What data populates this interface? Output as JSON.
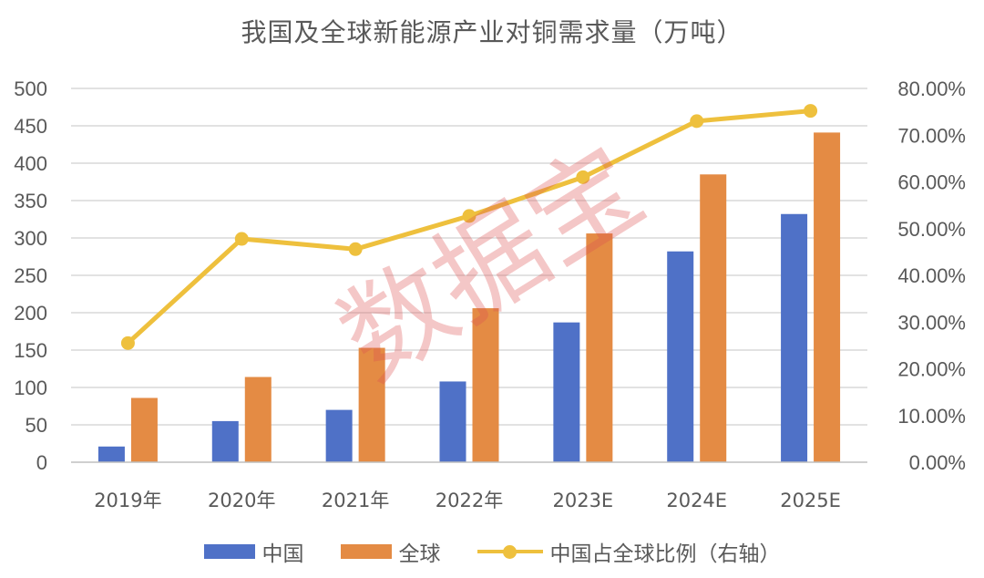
{
  "chart_data": {
    "type": "bar",
    "title": "我国及全球新能源产业对铜需求量（万吨）",
    "categories": [
      "2019年",
      "2020年",
      "2021年",
      "2022年",
      "2023E",
      "2024E",
      "2025E"
    ],
    "series": [
      {
        "name": "中国",
        "type": "bar",
        "axis": "left",
        "color": "#4F71C7",
        "values": [
          21,
          55,
          70,
          108,
          187,
          282,
          332
        ]
      },
      {
        "name": "全球",
        "type": "bar",
        "axis": "left",
        "color": "#E48B44",
        "values": [
          86,
          114,
          153,
          206,
          306,
          385,
          441
        ]
      },
      {
        "name": "中国占全球比例（右轴）",
        "type": "line",
        "axis": "right",
        "color": "#EEC03D",
        "values": [
          0.255,
          0.478,
          0.456,
          0.527,
          0.61,
          0.73,
          0.752
        ]
      }
    ],
    "left_axis": {
      "ylim": [
        0,
        500
      ],
      "ticks": [
        "0",
        "50",
        "100",
        "150",
        "200",
        "250",
        "300",
        "350",
        "400",
        "450",
        "500"
      ]
    },
    "right_axis": {
      "ylim": [
        0,
        0.8
      ],
      "ticks": [
        "0.00%",
        "10.00%",
        "20.00%",
        "30.00%",
        "40.00%",
        "50.00%",
        "60.00%",
        "70.00%",
        "80.00%"
      ]
    },
    "grid": true,
    "legend_position": "bottom",
    "watermark": "数据宝"
  }
}
